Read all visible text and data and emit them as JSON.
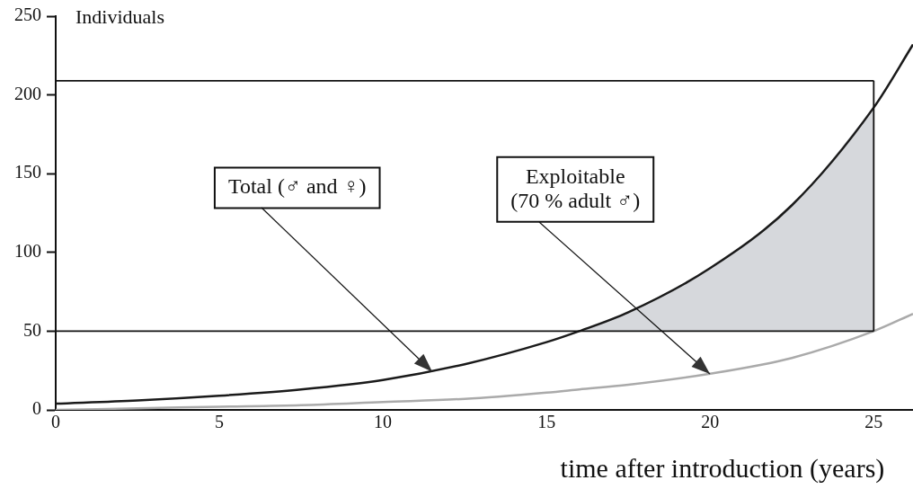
{
  "chart_data": {
    "type": "line",
    "xlabel": "time after introduction (years)",
    "ylabel": "Individuals",
    "x": [
      0,
      2.5,
      5,
      7.5,
      10,
      12.5,
      15,
      16,
      17.5,
      20,
      22.5,
      25,
      26.2
    ],
    "xlim": [
      0,
      26.2
    ],
    "xticks": [
      0,
      5,
      10,
      15,
      20,
      25
    ],
    "ylim": [
      0,
      250
    ],
    "yticks": [
      0,
      50,
      100,
      150,
      200,
      250
    ],
    "series": [
      {
        "color": "#1a1a1a",
        "values": [
          4,
          6,
          9,
          13,
          19,
          29,
          43,
          50,
          62,
          90,
          130,
          192,
          232
        ],
        "lower": [
          null,
          null,
          null,
          null,
          null,
          null,
          null,
          50,
          50,
          50,
          50,
          50,
          null
        ],
        "upper": [
          null,
          null,
          null,
          null,
          null,
          null,
          null,
          50,
          62,
          90,
          130,
          192,
          null
        ]
      },
      {
        "color": "#aaaaaa",
        "values": [
          0,
          1,
          2,
          3,
          5,
          7,
          11,
          13,
          16,
          23,
          33,
          50,
          61
        ]
      }
    ],
    "ref_lines": [
      {
        "axis": "y",
        "value": 50
      },
      {
        "axis": "y",
        "value": 209
      },
      {
        "axis": "x",
        "value": 25
      }
    ],
    "annotations": [
      {
        "text": "Total (♂ and ♀)",
        "x": 11.5,
        "y": 24
      },
      {
        "text": "Exploitable\n(70 % adult ♂)",
        "x": 20,
        "y": 23
      }
    ],
    "grid": false,
    "legend": false,
    "marker": "none"
  }
}
